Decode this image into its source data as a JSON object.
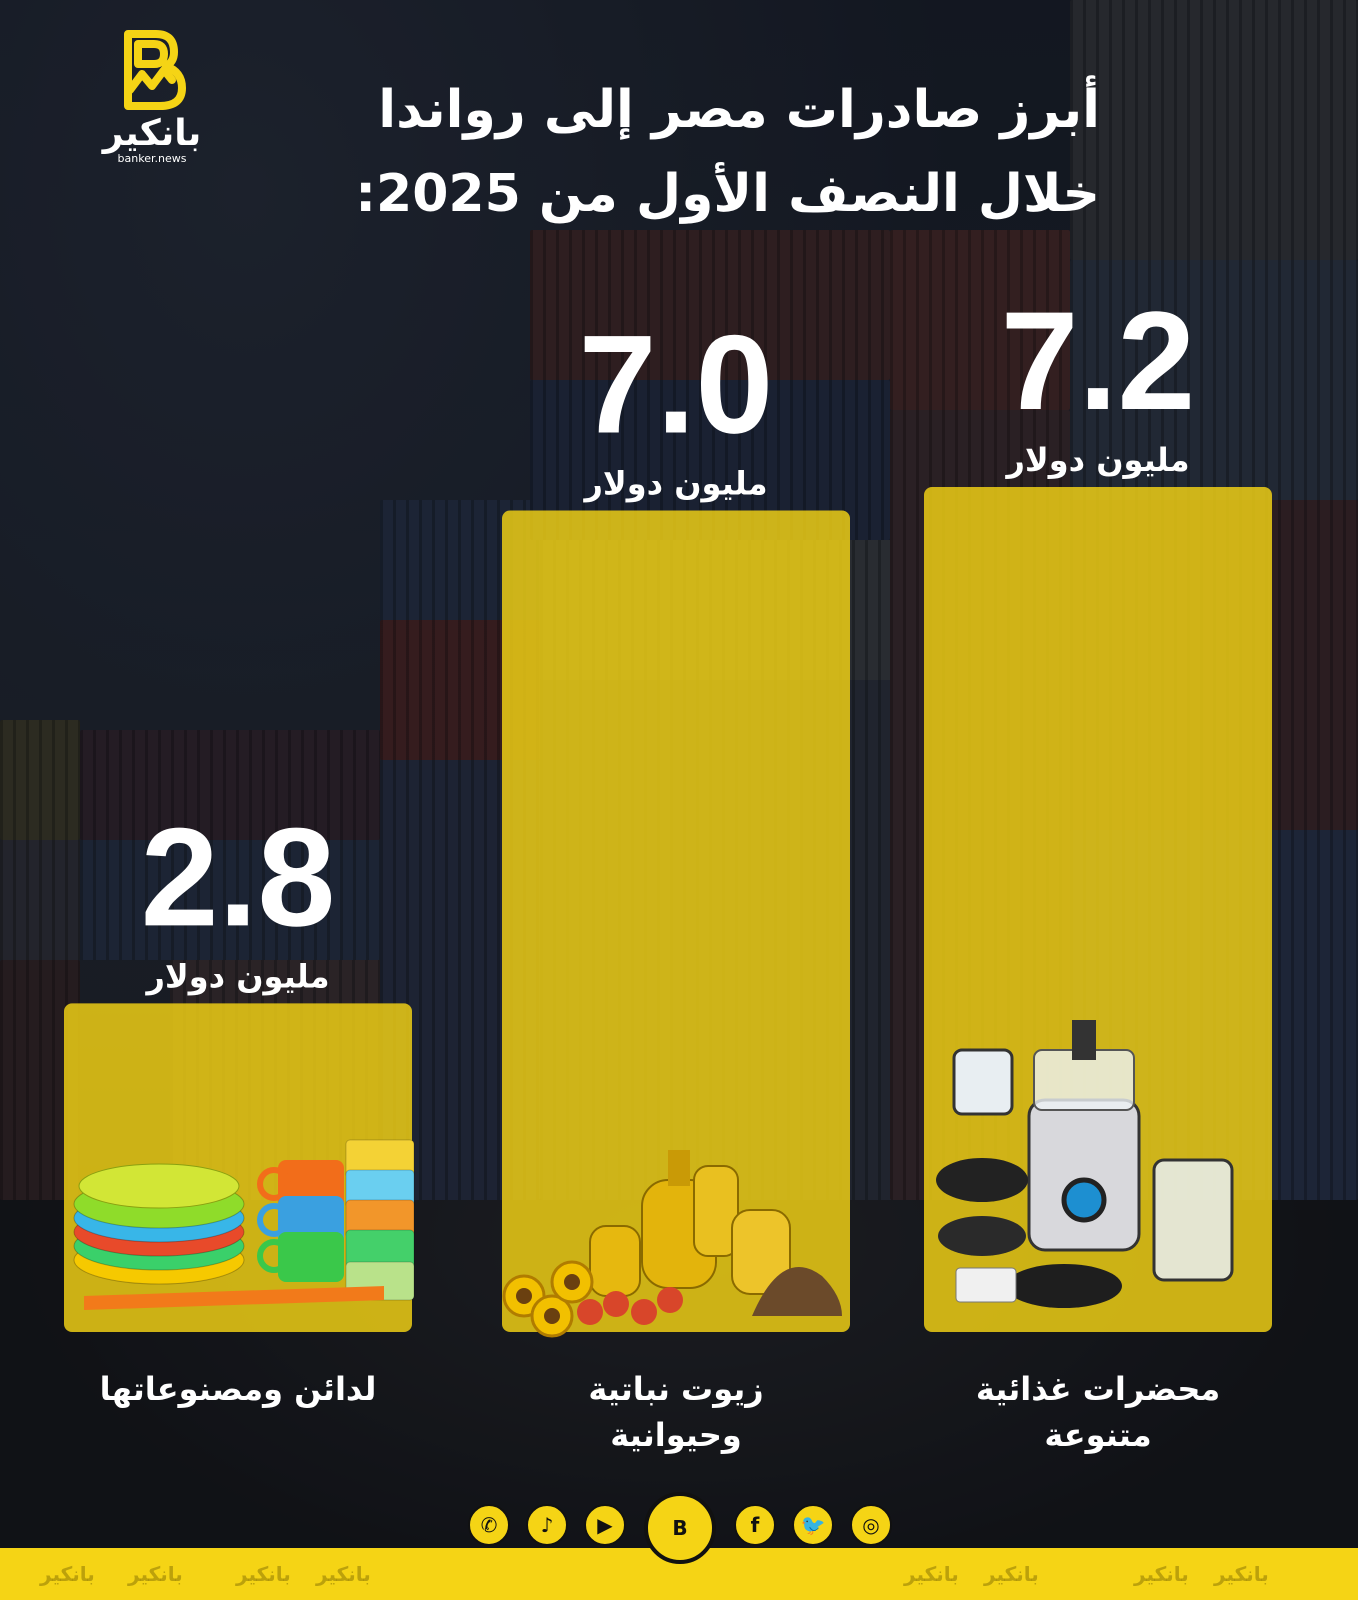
{
  "brand": {
    "name_ar": "بانكير",
    "domain": "banker.news"
  },
  "title_lines": [
    "أبرز صادرات مصر إلى رواندا",
    "خلال النصف الأول من 2025:"
  ],
  "colors": {
    "bar": "#f5d415",
    "text": "#ffffff",
    "footer": "#f5d415"
  },
  "chart_data": {
    "type": "bar",
    "title": "أبرز صادرات مصر إلى رواندا خلال النصف الأول من 2025:",
    "unit": "مليون دولار",
    "categories": [
      "محضرات غذائية متنوعة",
      "زيوت نباتية وحيوانية",
      "لدائن ومصنوعاتها"
    ],
    "category_lines": [
      [
        "محضرات غذائية",
        "متنوعة"
      ],
      [
        "زيوت نباتية",
        "وحيوانية"
      ],
      [
        "لدائن ومصنوعاتها"
      ]
    ],
    "values": [
      7.2,
      7.0,
      2.8
    ],
    "value_labels": [
      "7.2",
      "7.0",
      "2.8"
    ],
    "icons": [
      "food-processor-icon",
      "oil-bottles-icon",
      "plastic-ware-icon"
    ],
    "order": "right-to-left"
  },
  "footer": {
    "socials": [
      "instagram-icon",
      "twitter-icon",
      "facebook-icon",
      "brand-logo-icon",
      "youtube-icon",
      "tiktok-icon",
      "whatsapp-icon"
    ],
    "watermark": "بانكير"
  }
}
